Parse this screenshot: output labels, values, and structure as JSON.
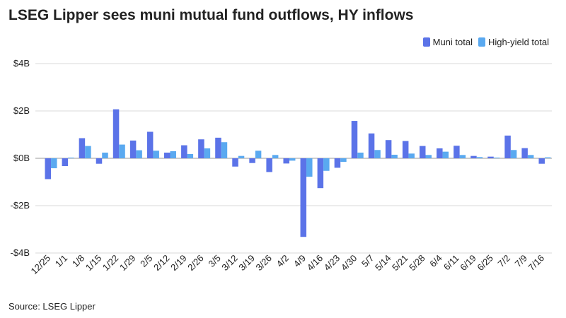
{
  "title": "LSEG Lipper sees muni mutual fund outflows, HY inflows",
  "source": "Source: LSEG Lipper",
  "colors": {
    "muni": "#5b73e8",
    "high_yield": "#5aa9f0",
    "grid": "#d9d9d9",
    "zero": "#9a9a9a"
  },
  "chart_data": {
    "type": "bar",
    "categories": [
      "12/25",
      "1/1",
      "1/8",
      "1/15",
      "1/22",
      "1/29",
      "2/5",
      "2/12",
      "2/19",
      "2/26",
      "3/5",
      "3/12",
      "3/19",
      "3/26",
      "4/2",
      "4/9",
      "4/16",
      "4/23",
      "4/30",
      "5/7",
      "5/14",
      "5/21",
      "5/28",
      "6/4",
      "6/11",
      "6/19",
      "6/25",
      "7/2",
      "7/9",
      "7/16"
    ],
    "series": [
      {
        "name": "Muni total",
        "values": [
          -0.88,
          -0.33,
          0.85,
          -0.23,
          2.07,
          0.75,
          1.12,
          0.24,
          0.55,
          0.8,
          0.87,
          -0.35,
          -0.2,
          -0.58,
          -0.22,
          -3.32,
          -1.26,
          -0.4,
          1.58,
          1.05,
          0.77,
          0.73,
          0.52,
          0.42,
          0.53,
          0.1,
          0.07,
          0.96,
          0.43,
          -0.23
        ]
      },
      {
        "name": "High-yield total",
        "values": [
          -0.42,
          0.03,
          0.52,
          0.24,
          0.58,
          0.34,
          0.32,
          0.3,
          0.18,
          0.42,
          0.68,
          0.1,
          0.32,
          0.14,
          -0.1,
          -0.78,
          -0.53,
          -0.15,
          0.24,
          0.35,
          0.15,
          0.2,
          0.14,
          0.28,
          0.14,
          0.05,
          0.03,
          0.35,
          0.14,
          0.04
        ]
      }
    ],
    "y_ticks": [
      "$4B",
      "$2B",
      "$0B",
      "-$2B",
      "-$4B"
    ],
    "ylim": [
      -4,
      4
    ],
    "grid": true,
    "legend_position": "top-right"
  }
}
